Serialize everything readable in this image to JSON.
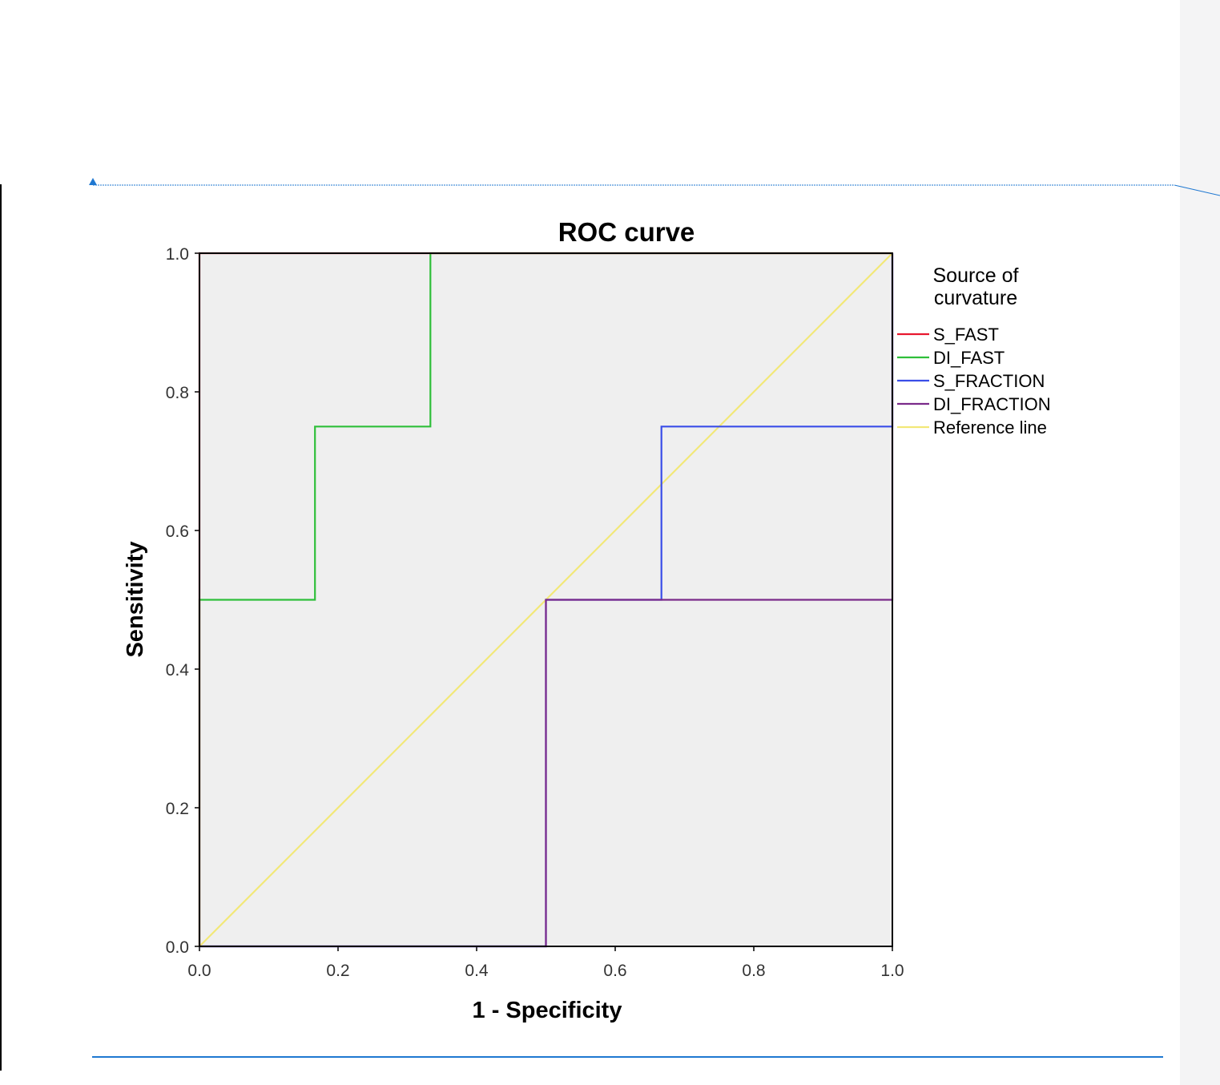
{
  "chart_data": {
    "type": "line",
    "title": "ROC curve",
    "xlabel": "1 - Specificity",
    "ylabel": "Sensitivity",
    "xlim": [
      0,
      1
    ],
    "ylim": [
      0,
      1
    ],
    "x_ticks": [
      "0.0",
      "0.2",
      "0.4",
      "0.6",
      "0.8",
      "1.0"
    ],
    "y_ticks": [
      "0.0",
      "0.2",
      "0.4",
      "0.6",
      "0.8",
      "1.0"
    ],
    "legend_title": "Source of curvature",
    "legend_title_lines": [
      "Source of",
      "curvature"
    ],
    "legend_position": "right",
    "grid": false,
    "series": [
      {
        "name": "S_FAST",
        "color": "#e8182f",
        "points": [
          [
            0,
            0
          ],
          [
            0,
            0.5
          ],
          [
            0,
            1
          ],
          [
            1,
            1
          ]
        ]
      },
      {
        "name": "DI_FAST",
        "color": "#2fbf3a",
        "points": [
          [
            0,
            0
          ],
          [
            0,
            0.5
          ],
          [
            0.1667,
            0.5
          ],
          [
            0.1667,
            0.75
          ],
          [
            0.3333,
            0.75
          ],
          [
            0.3333,
            1
          ],
          [
            1,
            1
          ]
        ]
      },
      {
        "name": "S_FRACTION",
        "color": "#3a4ee8",
        "points": [
          [
            0,
            0
          ],
          [
            0.5,
            0
          ],
          [
            0.5,
            0.5
          ],
          [
            0.6667,
            0.5
          ],
          [
            0.6667,
            0.75
          ],
          [
            1,
            0.75
          ],
          [
            1,
            1
          ]
        ]
      },
      {
        "name": "DI_FRACTION",
        "color": "#7a2a8a",
        "points": [
          [
            0,
            0
          ],
          [
            0.5,
            0
          ],
          [
            0.5,
            0.5
          ],
          [
            1,
            0.5
          ],
          [
            1,
            1
          ]
        ]
      },
      {
        "name": "Reference line",
        "color": "#f2e878",
        "points": [
          [
            0,
            0
          ],
          [
            1,
            1
          ]
        ]
      }
    ]
  },
  "colors": {
    "plot_background": "#efefef",
    "frame": "#000000",
    "accent_line": "#1f78d1",
    "side_panel": "#f4f4f5"
  }
}
